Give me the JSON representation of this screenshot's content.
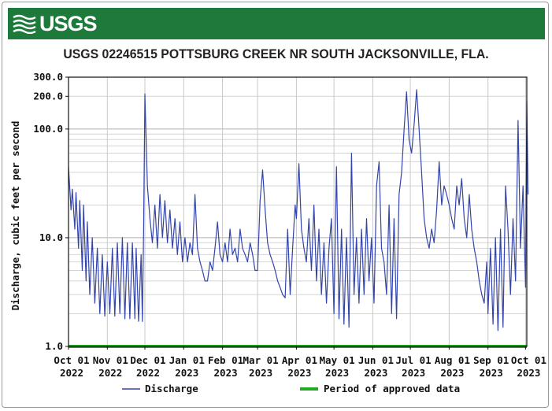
{
  "header": {
    "logo_text": "USGS",
    "logo_icon": "usgs-wave-icon",
    "banner_color": "#1d7a3a"
  },
  "chart_data": {
    "type": "line",
    "title": "USGS 02246515 POTTSBURG CREEK NR SOUTH JACKSONVILLE, FLA.",
    "ylabel": "Discharge, cubic feet per second",
    "xlabel": "",
    "yscale": "log",
    "ylim": [
      1,
      300
    ],
    "xlim": [
      "2022-10-01",
      "2023-10-02"
    ],
    "y_ticks": [
      {
        "value": 1,
        "label": "1.0"
      },
      {
        "value": 10,
        "label": "10.0"
      },
      {
        "value": 100,
        "label": "100.0"
      },
      {
        "value": 200,
        "label": "200.0"
      },
      {
        "value": 300,
        "label": "300.0"
      }
    ],
    "x_ticks": [
      {
        "date": "2022-10-01",
        "line1": "Oct 01",
        "line2": "2022"
      },
      {
        "date": "2022-11-01",
        "line1": "Nov 01",
        "line2": "2022"
      },
      {
        "date": "2022-12-01",
        "line1": "Dec 01",
        "line2": "2022"
      },
      {
        "date": "2023-01-01",
        "line1": "Jan 01",
        "line2": "2023"
      },
      {
        "date": "2023-02-01",
        "line1": "Feb 01",
        "line2": "2023"
      },
      {
        "date": "2023-03-01",
        "line1": "Mar 01",
        "line2": "2023"
      },
      {
        "date": "2023-04-01",
        "line1": "Apr 01",
        "line2": "2023"
      },
      {
        "date": "2023-05-01",
        "line1": "May 01",
        "line2": "2023"
      },
      {
        "date": "2023-06-01",
        "line1": "Jun 01",
        "line2": "2023"
      },
      {
        "date": "2023-07-01",
        "line1": "Jul 01",
        "line2": "2023"
      },
      {
        "date": "2023-08-01",
        "line1": "Aug 01",
        "line2": "2023"
      },
      {
        "date": "2023-09-01",
        "line1": "Sep 01",
        "line2": "2023"
      },
      {
        "date": "2023-10-01",
        "line1": "Oct 01",
        "line2": "2023"
      }
    ],
    "grid": true,
    "legend_position": "bottom",
    "series": [
      {
        "name": "Discharge",
        "color": "#3344aa",
        "points": [
          [
            "2022-10-01",
            45
          ],
          [
            "2022-10-03",
            18
          ],
          [
            "2022-10-04",
            28
          ],
          [
            "2022-10-06",
            12
          ],
          [
            "2022-10-07",
            26
          ],
          [
            "2022-10-09",
            8
          ],
          [
            "2022-10-10",
            22
          ],
          [
            "2022-10-12",
            5
          ],
          [
            "2022-10-13",
            20
          ],
          [
            "2022-10-15",
            4
          ],
          [
            "2022-10-16",
            14
          ],
          [
            "2022-10-18",
            3
          ],
          [
            "2022-10-20",
            10
          ],
          [
            "2022-10-22",
            2.5
          ],
          [
            "2022-10-24",
            8
          ],
          [
            "2022-10-26",
            2
          ],
          [
            "2022-10-28",
            7
          ],
          [
            "2022-10-30",
            1.9
          ],
          [
            "2022-11-01",
            6
          ],
          [
            "2022-11-03",
            2
          ],
          [
            "2022-11-05",
            8
          ],
          [
            "2022-11-07",
            1.9
          ],
          [
            "2022-11-09",
            9
          ],
          [
            "2022-11-11",
            2
          ],
          [
            "2022-11-13",
            10
          ],
          [
            "2022-11-15",
            1.8
          ],
          [
            "2022-11-17",
            9
          ],
          [
            "2022-11-19",
            1.8
          ],
          [
            "2022-11-21",
            9
          ],
          [
            "2022-11-23",
            1.8
          ],
          [
            "2022-11-24",
            8
          ],
          [
            "2022-11-26",
            1.7
          ],
          [
            "2022-11-28",
            7
          ],
          [
            "2022-11-29",
            1.7
          ],
          [
            "2022-11-30",
            12
          ],
          [
            "2022-12-01",
            210
          ],
          [
            "2022-12-03",
            30
          ],
          [
            "2022-12-05",
            15
          ],
          [
            "2022-12-07",
            9
          ],
          [
            "2022-12-09",
            20
          ],
          [
            "2022-12-11",
            8
          ],
          [
            "2022-12-13",
            25
          ],
          [
            "2022-12-15",
            10
          ],
          [
            "2022-12-17",
            22
          ],
          [
            "2022-12-19",
            9
          ],
          [
            "2022-12-21",
            18
          ],
          [
            "2022-12-23",
            8
          ],
          [
            "2022-12-25",
            15
          ],
          [
            "2022-12-27",
            7
          ],
          [
            "2022-12-29",
            14
          ],
          [
            "2022-12-31",
            6
          ],
          [
            "2023-01-02",
            10
          ],
          [
            "2023-01-04",
            6
          ],
          [
            "2023-01-06",
            9
          ],
          [
            "2023-01-08",
            7
          ],
          [
            "2023-01-10",
            25
          ],
          [
            "2023-01-12",
            8
          ],
          [
            "2023-01-14",
            6
          ],
          [
            "2023-01-16",
            5
          ],
          [
            "2023-01-18",
            4
          ],
          [
            "2023-01-20",
            4
          ],
          [
            "2023-01-22",
            6
          ],
          [
            "2023-01-24",
            5
          ],
          [
            "2023-01-26",
            8
          ],
          [
            "2023-01-28",
            14
          ],
          [
            "2023-01-30",
            7
          ],
          [
            "2023-02-01",
            6
          ],
          [
            "2023-02-03",
            9
          ],
          [
            "2023-02-05",
            6
          ],
          [
            "2023-02-07",
            12
          ],
          [
            "2023-02-09",
            7
          ],
          [
            "2023-02-11",
            8
          ],
          [
            "2023-02-13",
            6
          ],
          [
            "2023-02-15",
            12
          ],
          [
            "2023-02-17",
            8
          ],
          [
            "2023-02-19",
            7
          ],
          [
            "2023-02-21",
            6
          ],
          [
            "2023-02-23",
            9
          ],
          [
            "2023-02-25",
            7
          ],
          [
            "2023-02-27",
            5
          ],
          [
            "2023-03-01",
            5
          ],
          [
            "2023-03-03",
            22
          ],
          [
            "2023-03-05",
            42
          ],
          [
            "2023-03-07",
            18
          ],
          [
            "2023-03-09",
            9
          ],
          [
            "2023-03-11",
            7
          ],
          [
            "2023-03-13",
            6
          ],
          [
            "2023-03-15",
            5
          ],
          [
            "2023-03-17",
            4
          ],
          [
            "2023-03-19",
            3.5
          ],
          [
            "2023-03-21",
            3
          ],
          [
            "2023-03-23",
            2.8
          ],
          [
            "2023-03-25",
            12
          ],
          [
            "2023-03-27",
            3
          ],
          [
            "2023-03-29",
            8
          ],
          [
            "2023-03-31",
            20
          ],
          [
            "2023-04-01",
            15
          ],
          [
            "2023-04-03",
            48
          ],
          [
            "2023-04-05",
            12
          ],
          [
            "2023-04-07",
            8
          ],
          [
            "2023-04-09",
            6
          ],
          [
            "2023-04-11",
            15
          ],
          [
            "2023-04-13",
            5
          ],
          [
            "2023-04-15",
            20
          ],
          [
            "2023-04-17",
            4
          ],
          [
            "2023-04-19",
            12
          ],
          [
            "2023-04-21",
            3
          ],
          [
            "2023-04-23",
            9
          ],
          [
            "2023-04-25",
            2.5
          ],
          [
            "2023-04-27",
            8
          ],
          [
            "2023-04-29",
            15
          ],
          [
            "2023-05-01",
            2
          ],
          [
            "2023-05-03",
            45
          ],
          [
            "2023-05-05",
            1.8
          ],
          [
            "2023-05-07",
            12
          ],
          [
            "2023-05-09",
            1.6
          ],
          [
            "2023-05-11",
            10
          ],
          [
            "2023-05-13",
            1.5
          ],
          [
            "2023-05-15",
            60
          ],
          [
            "2023-05-17",
            3
          ],
          [
            "2023-05-19",
            10
          ],
          [
            "2023-05-21",
            2.5
          ],
          [
            "2023-05-23",
            12
          ],
          [
            "2023-05-25",
            3
          ],
          [
            "2023-05-27",
            15
          ],
          [
            "2023-05-29",
            4
          ],
          [
            "2023-05-31",
            10
          ],
          [
            "2023-06-02",
            2.5
          ],
          [
            "2023-06-04",
            30
          ],
          [
            "2023-06-06",
            50
          ],
          [
            "2023-06-08",
            8
          ],
          [
            "2023-06-10",
            6
          ],
          [
            "2023-06-12",
            3
          ],
          [
            "2023-06-14",
            20
          ],
          [
            "2023-06-16",
            2
          ],
          [
            "2023-06-18",
            15
          ],
          [
            "2023-06-20",
            1.8
          ],
          [
            "2023-06-22",
            25
          ],
          [
            "2023-06-24",
            40
          ],
          [
            "2023-06-26",
            100
          ],
          [
            "2023-06-28",
            220
          ],
          [
            "2023-06-30",
            80
          ],
          [
            "2023-07-02",
            60
          ],
          [
            "2023-07-04",
            110
          ],
          [
            "2023-07-06",
            230
          ],
          [
            "2023-07-08",
            100
          ],
          [
            "2023-07-10",
            40
          ],
          [
            "2023-07-12",
            15
          ],
          [
            "2023-07-14",
            10
          ],
          [
            "2023-07-16",
            8
          ],
          [
            "2023-07-18",
            12
          ],
          [
            "2023-07-20",
            9
          ],
          [
            "2023-07-22",
            18
          ],
          [
            "2023-07-24",
            50
          ],
          [
            "2023-07-26",
            20
          ],
          [
            "2023-07-28",
            30
          ],
          [
            "2023-07-30",
            25
          ],
          [
            "2023-08-01",
            20
          ],
          [
            "2023-08-03",
            15
          ],
          [
            "2023-08-05",
            12
          ],
          [
            "2023-08-07",
            30
          ],
          [
            "2023-08-09",
            20
          ],
          [
            "2023-08-11",
            35
          ],
          [
            "2023-08-13",
            15
          ],
          [
            "2023-08-15",
            10
          ],
          [
            "2023-08-17",
            25
          ],
          [
            "2023-08-19",
            12
          ],
          [
            "2023-08-21",
            8
          ],
          [
            "2023-08-23",
            6
          ],
          [
            "2023-08-25",
            4
          ],
          [
            "2023-08-27",
            3
          ],
          [
            "2023-08-29",
            2.5
          ],
          [
            "2023-08-31",
            6
          ],
          [
            "2023-09-01",
            2
          ],
          [
            "2023-09-03",
            8
          ],
          [
            "2023-09-05",
            1.6
          ],
          [
            "2023-09-07",
            10
          ],
          [
            "2023-09-09",
            1.4
          ],
          [
            "2023-09-11",
            12
          ],
          [
            "2023-09-13",
            1.5
          ],
          [
            "2023-09-15",
            30
          ],
          [
            "2023-09-17",
            12
          ],
          [
            "2023-09-19",
            3
          ],
          [
            "2023-09-21",
            15
          ],
          [
            "2023-09-23",
            4
          ],
          [
            "2023-09-25",
            120
          ],
          [
            "2023-09-27",
            8
          ],
          [
            "2023-09-29",
            30
          ],
          [
            "2023-10-01",
            3.5
          ],
          [
            "2023-10-02",
            180
          ],
          [
            "2023-10-03",
            25
          ]
        ]
      },
      {
        "name": "Period of approved data",
        "color": "#22aa22",
        "points": [
          [
            "2022-10-01",
            1
          ],
          [
            "2023-10-02",
            1
          ]
        ]
      }
    ]
  }
}
